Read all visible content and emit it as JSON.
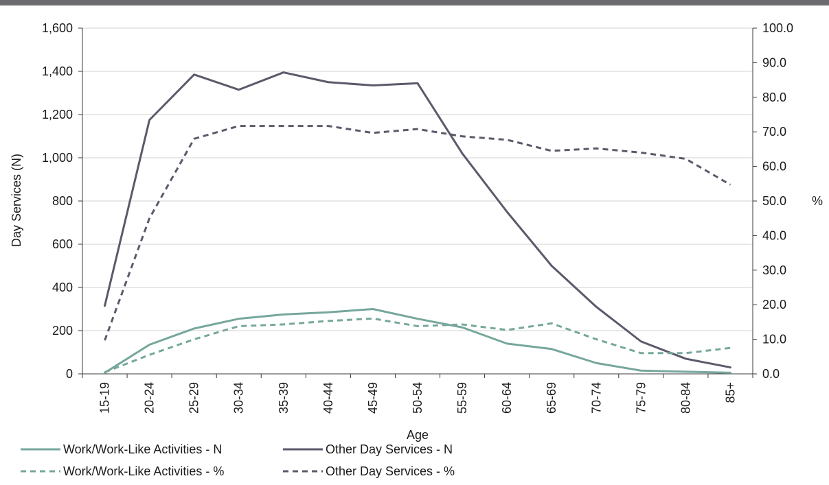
{
  "colors": {
    "topbar": "#6b6b70",
    "work": "#76a79c",
    "other": "#5a5a6b",
    "grid": "#d0d0d0",
    "axis": "#3a3a3a"
  },
  "chart_data": {
    "type": "line",
    "xlabel": "Age",
    "ylabel": "Day Services (N)",
    "y2label": "%",
    "categories": [
      "15-19",
      "20-24",
      "25-29",
      "30-34",
      "35-39",
      "40-44",
      "45-49",
      "50-54",
      "55-59",
      "60-64",
      "65-69",
      "70-74",
      "75-79",
      "80-84",
      "85+"
    ],
    "ylim": [
      0,
      1600
    ],
    "y2lim": [
      0,
      100
    ],
    "yticks": [
      "0",
      "200",
      "400",
      "600",
      "800",
      "1,000",
      "1,200",
      "1,400",
      "1,600"
    ],
    "y2ticks": [
      "0.0",
      "10.0",
      "20.0",
      "30.0",
      "40.0",
      "50.0",
      "60.0",
      "70.0",
      "80.0",
      "90.0",
      "100.0"
    ],
    "grid": "horizontal",
    "legend_position": "bottom",
    "series": [
      {
        "name": "Work/Work-Like Activities - N",
        "axis": "left",
        "style": "solid",
        "color": "#76a79c",
        "values": [
          5,
          135,
          210,
          255,
          275,
          285,
          300,
          255,
          215,
          140,
          115,
          50,
          15,
          10,
          5
        ]
      },
      {
        "name": "Other Day Services - N",
        "axis": "left",
        "style": "solid",
        "color": "#5a5a6b",
        "values": [
          315,
          1175,
          1385,
          1315,
          1395,
          1350,
          1335,
          1345,
          1020,
          750,
          500,
          310,
          150,
          70,
          30
        ]
      },
      {
        "name": "Work/Work-Like Activities - %",
        "axis": "right",
        "style": "dashed",
        "color": "#76a79c",
        "values": [
          0.5,
          5.5,
          10.0,
          13.8,
          14.3,
          15.3,
          16.0,
          13.8,
          14.3,
          12.7,
          14.6,
          10.0,
          6.0,
          6.0,
          7.5
        ]
      },
      {
        "name": "Other Day Services - %",
        "axis": "right",
        "style": "dashed",
        "color": "#5a5a6b",
        "values": [
          9.7,
          45.0,
          68.0,
          71.7,
          71.7,
          71.7,
          69.7,
          70.8,
          68.7,
          67.7,
          64.5,
          65.2,
          64.0,
          62.2,
          54.7
        ]
      }
    ]
  }
}
